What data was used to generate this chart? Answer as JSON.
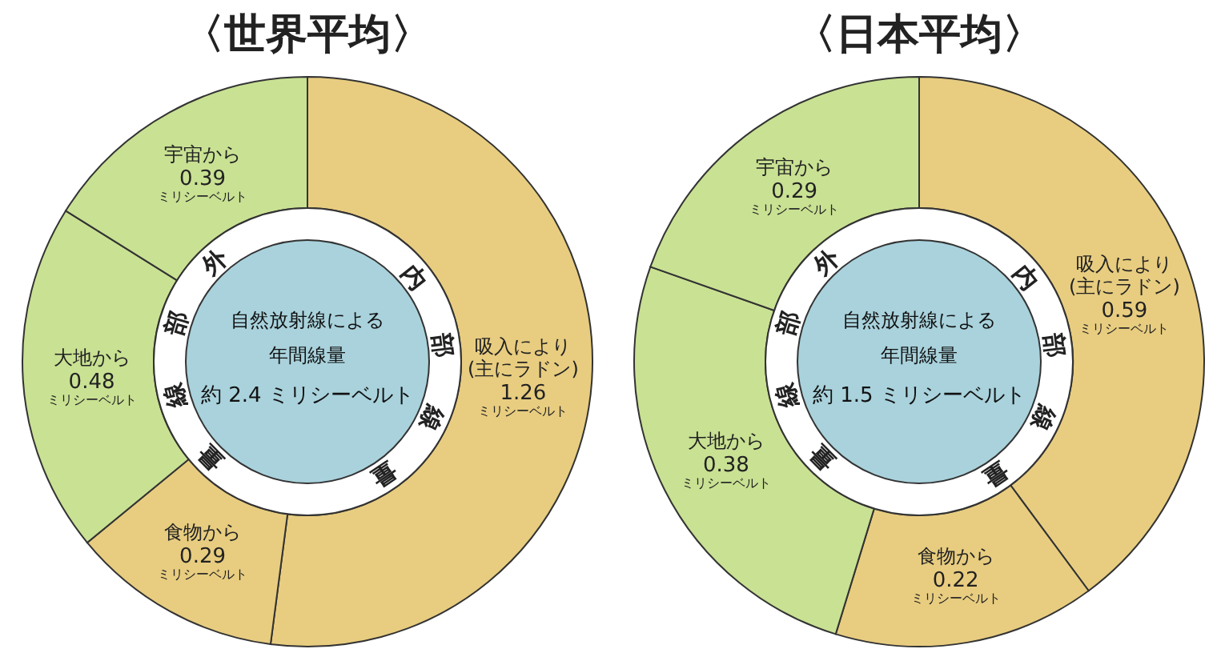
{
  "chart_data": [
    {
      "type": "donut",
      "title": "〈世界平均〉",
      "categories": [
        "吸入により\n(主にラドン)",
        "食物から",
        "大地から",
        "宇宙から"
      ],
      "values": [
        1.26,
        0.29,
        0.48,
        0.39
      ],
      "colors": [
        "#e8cd80",
        "#e8cd80",
        "#c9e193",
        "#c9e193"
      ],
      "value_labels": [
        "1.26\nミリシーベルト",
        "0.29\nミリシーベルト",
        "0.48\nミリシーベルト",
        "0.39\nミリシーベルト"
      ],
      "annotations": [
        "自然放射線による",
        "年間線量",
        "約 2.4 ミリシーベルト",
        "外部線量",
        "内部線量"
      ]
    },
    {
      "type": "donut",
      "title": "〈日本平均〉",
      "categories": [
        "吸入により\n(主にラドン)",
        "食物から",
        "大地から",
        "宇宙から"
      ],
      "values": [
        0.59,
        0.22,
        0.38,
        0.29
      ],
      "colors": [
        "#e8cd80",
        "#e8cd80",
        "#c9e193",
        "#c9e193"
      ],
      "value_labels": [
        "0.59\nミリシーベルト",
        "0.22\nミリシーベルト",
        "0.38\nミリシーベルト",
        "0.29\nミリシーベルト"
      ],
      "annotations": [
        "自然放射線による",
        "年間線量",
        "約 1.5 ミリシーベルト",
        "外部線量",
        "内部線量"
      ]
    }
  ]
}
